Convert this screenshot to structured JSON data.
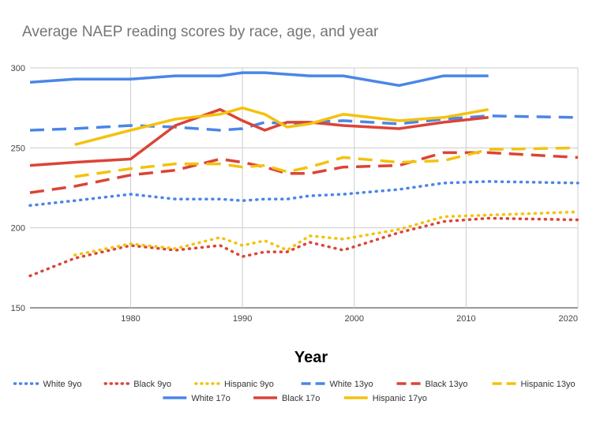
{
  "chart_data": {
    "type": "line",
    "title": "Average NAEP reading scores by race, age, and year",
    "xlabel": "Year",
    "ylabel": "",
    "xlim": [
      1971,
      2020
    ],
    "ylim": [
      150,
      300
    ],
    "x_ticks": [
      1980,
      1990,
      2000,
      2010,
      2020
    ],
    "y_ticks": [
      150,
      200,
      250,
      300
    ],
    "grid": true,
    "legend_position": "bottom",
    "series": [
      {
        "name": "White 9yo",
        "color": "#4a86e8",
        "style": "dotted",
        "x": [
          1971,
          1975,
          1980,
          1984,
          1988,
          1990,
          1992,
          1994,
          1996,
          1999,
          2004,
          2008,
          2012,
          2020
        ],
        "values": [
          214,
          217,
          221,
          218,
          218,
          217,
          218,
          218,
          220,
          221,
          224,
          228,
          229,
          228
        ]
      },
      {
        "name": "Black 9yo",
        "color": "#db4437",
        "style": "dotted",
        "x": [
          1971,
          1975,
          1980,
          1984,
          1988,
          1990,
          1992,
          1994,
          1996,
          1999,
          2004,
          2008,
          2012,
          2020
        ],
        "values": [
          170,
          181,
          189,
          186,
          189,
          182,
          185,
          185,
          191,
          186,
          197,
          204,
          206,
          205
        ]
      },
      {
        "name": "Hispanic 9yo",
        "color": "#f4c20d",
        "style": "dotted",
        "x": [
          1975,
          1980,
          1984,
          1988,
          1990,
          1992,
          1994,
          1996,
          1999,
          2004,
          2008,
          2012,
          2020
        ],
        "values": [
          183,
          190,
          187,
          194,
          189,
          192,
          186,
          195,
          193,
          199,
          207,
          208,
          210
        ]
      },
      {
        "name": "White 13yo",
        "color": "#4a86e8",
        "style": "dashed",
        "x": [
          1971,
          1975,
          1980,
          1984,
          1988,
          1990,
          1992,
          1994,
          1996,
          1999,
          2004,
          2008,
          2012,
          2020
        ],
        "values": [
          261,
          262,
          264,
          263,
          261,
          262,
          266,
          265,
          266,
          267,
          265,
          268,
          270,
          269
        ]
      },
      {
        "name": "Black 13yo",
        "color": "#db4437",
        "style": "dashed",
        "x": [
          1971,
          1975,
          1980,
          1984,
          1988,
          1990,
          1992,
          1994,
          1996,
          1999,
          2004,
          2008,
          2012,
          2020
        ],
        "values": [
          222,
          226,
          233,
          236,
          243,
          241,
          238,
          234,
          234,
          238,
          239,
          247,
          247,
          244
        ]
      },
      {
        "name": "Hispanic 13yo",
        "color": "#f4c20d",
        "style": "dashed",
        "x": [
          1975,
          1980,
          1984,
          1988,
          1990,
          1992,
          1994,
          1996,
          1999,
          2004,
          2008,
          2012,
          2020
        ],
        "values": [
          232,
          237,
          240,
          240,
          238,
          239,
          235,
          238,
          244,
          241,
          242,
          249,
          250
        ]
      },
      {
        "name": "White 17o",
        "color": "#4a86e8",
        "style": "solid",
        "x": [
          1971,
          1975,
          1980,
          1984,
          1988,
          1990,
          1992,
          1994,
          1996,
          1999,
          2004,
          2008,
          2012
        ],
        "values": [
          291,
          293,
          293,
          295,
          295,
          297,
          297,
          296,
          295,
          295,
          289,
          295,
          295
        ]
      },
      {
        "name": "Black 17o",
        "color": "#db4437",
        "style": "solid",
        "x": [
          1971,
          1975,
          1980,
          1984,
          1988,
          1990,
          1992,
          1994,
          1996,
          1999,
          2004,
          2008,
          2012
        ],
        "values": [
          239,
          241,
          243,
          264,
          274,
          267,
          261,
          266,
          266,
          264,
          262,
          266,
          269
        ]
      },
      {
        "name": "Hispanic 17yo",
        "color": "#f4c20d",
        "style": "solid",
        "x": [
          1975,
          1980,
          1984,
          1988,
          1990,
          1992,
          1994,
          1996,
          1999,
          2004,
          2008,
          2012
        ],
        "values": [
          252,
          261,
          268,
          271,
          275,
          271,
          263,
          265,
          271,
          267,
          269,
          274
        ]
      }
    ],
    "legend_rows": [
      [
        "White 9yo",
        "Black 9yo",
        "Hispanic 9yo",
        "White 13yo",
        "Black 13yo",
        "Hispanic 13yo"
      ],
      [
        "White 17o",
        "Black 17o",
        "Hispanic 17yo"
      ]
    ]
  }
}
